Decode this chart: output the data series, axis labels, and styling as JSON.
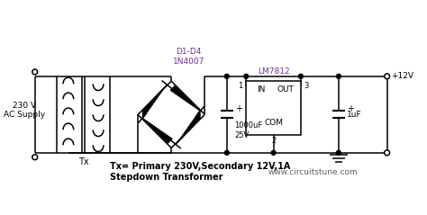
{
  "bg_color": "#ffffff",
  "line_color": "#000000",
  "label_color_purple": "#7030a0",
  "label_color_gray": "#606060",
  "fig_width": 4.74,
  "fig_height": 2.39,
  "bottom_text1": "Tx= Primary 230V,Secondary 12V,1A",
  "bottom_text2": "Stepdown Transformer",
  "website": "www.circuitstune.com",
  "label_230V": "230 V\nAC Supply",
  "label_Tx": "Tx",
  "label_diodes": "D1-D4\n1N4007",
  "label_IC": "LM7812",
  "label_cap1": "1000uF\n25V",
  "label_cap2": "1uF",
  "label_12V": "+12V",
  "label_IN": "IN",
  "label_OUT": "OUT",
  "label_COM": "COM",
  "label_1": "1",
  "label_2": "2",
  "label_3": "3",
  "label_plus1": "+",
  "label_plus2": "+"
}
